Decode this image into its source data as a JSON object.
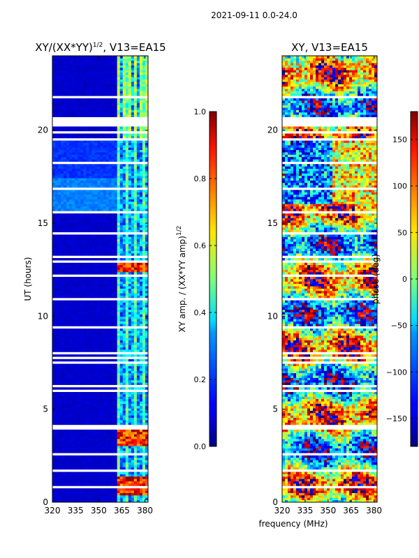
{
  "suptitle": "2021-09-11 0.0-24.0",
  "chart_data": [
    {
      "type": "heatmap",
      "title": "XY/(XX*YY)",
      "title_superscript": "1/2",
      "title_suffix": ", V13=EA15",
      "xlabel": "",
      "ylabel": "UT (hours)",
      "xlim": [
        320,
        382
      ],
      "ylim": [
        0,
        24
      ],
      "xticks": [
        320,
        335,
        350,
        365,
        380
      ],
      "yticks": [
        0,
        5,
        10,
        15,
        20
      ],
      "colormap": "jet",
      "colorbar": {
        "label": "XY amp. / (XX*YY amp)",
        "label_superscript": "1/2",
        "vmin": 0.0,
        "vmax": 1.0,
        "ticks": [
          "0.0",
          "0.2",
          "0.4",
          "0.6",
          "0.8",
          "1.0"
        ]
      },
      "flagged_frequency_range_mhz": [
        320,
        362
      ],
      "signal_frequency_range_mhz": [
        362,
        382
      ],
      "bright_band_ut_hours": [
        [
          0.4,
          1.4
        ],
        [
          12.4,
          13.0
        ],
        [
          3.0,
          4.0
        ]
      ]
    },
    {
      "type": "heatmap",
      "title": "XY, V13=EA15",
      "xlabel": "frequency (MHz)",
      "ylabel": "",
      "xlim": [
        320,
        382
      ],
      "ylim": [
        0,
        24
      ],
      "xticks": [
        320,
        335,
        350,
        365,
        380
      ],
      "yticks": [
        0,
        5,
        10,
        15,
        20
      ],
      "colormap": "jet",
      "colorbar": {
        "label": "phase (deg)",
        "vmin": -180,
        "vmax": 180,
        "ticks": [
          "150",
          "100",
          "50",
          "0",
          "−50",
          "−100",
          "−150"
        ],
        "tick_values": [
          150,
          100,
          50,
          0,
          -50,
          -100,
          -150
        ]
      }
    }
  ]
}
